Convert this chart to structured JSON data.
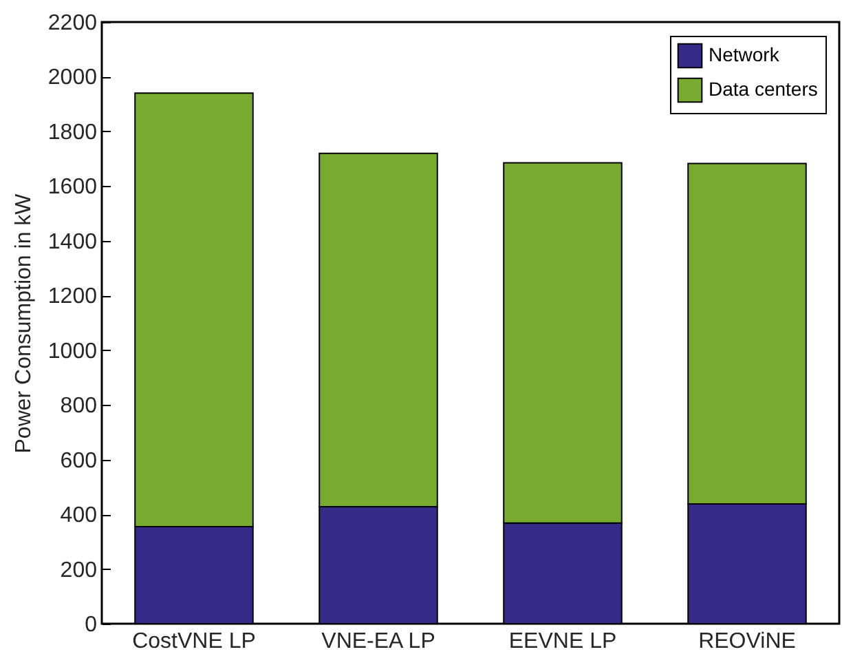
{
  "chart_data": {
    "type": "bar",
    "stacked": true,
    "ylabel": "Power Consumption in kW",
    "categories": [
      "CostVNE LP",
      "VNE-EA LP",
      "EEVNE LP",
      "REOViNE"
    ],
    "series": [
      {
        "name": "Network",
        "color": "#352a87",
        "values": [
          355,
          428,
          368,
          438
        ]
      },
      {
        "name": "Data centers",
        "color": "#78ab30",
        "values": [
          1585,
          1292,
          1317,
          1245
        ]
      }
    ],
    "ylim": [
      0,
      2200
    ],
    "yticks": [
      0,
      200,
      400,
      600,
      800,
      1000,
      1200,
      1400,
      1600,
      1800,
      2000,
      2200
    ],
    "legend": "top right",
    "grid": false
  }
}
